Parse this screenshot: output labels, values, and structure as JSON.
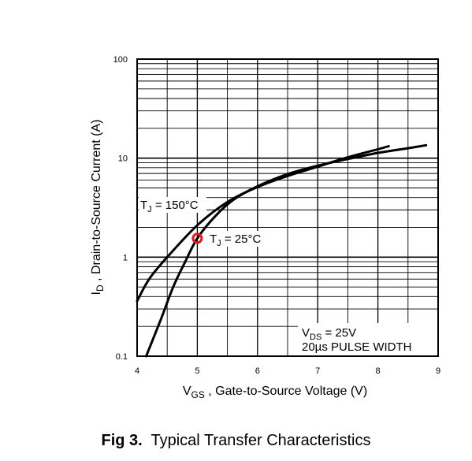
{
  "chart_data": {
    "type": "line",
    "x_axis": {
      "label_main": "V",
      "label_sub": "GS",
      "label_rest": " , Gate-to-Source Voltage (V)",
      "range": [
        4,
        9
      ],
      "ticks": [
        "4",
        "5",
        "6",
        "7",
        "8",
        "9"
      ]
    },
    "y_axis": {
      "scale": "log",
      "label_main": "I",
      "label_sub": "D",
      "label_rest": " , Drain-to-Source Current (A)",
      "range": [
        0.1,
        100
      ],
      "ticks": [
        "0.1",
        "1",
        "10",
        "100"
      ]
    },
    "grid": true,
    "series": [
      {
        "name": "TJ = 150°C",
        "label_main": "T",
        "label_sub": "J",
        "label_rest": " = 150°C",
        "points": [
          [
            4.0,
            0.36
          ],
          [
            4.2,
            0.6
          ],
          [
            4.5,
            1.0
          ],
          [
            5.0,
            2.1
          ],
          [
            5.5,
            3.6
          ],
          [
            6.0,
            5.1
          ],
          [
            6.5,
            6.6
          ],
          [
            7.0,
            8.2
          ],
          [
            7.5,
            10.2
          ],
          [
            8.0,
            12.3
          ],
          [
            8.18,
            13.2
          ]
        ]
      },
      {
        "name": "TJ = 25°C",
        "label_main": "T",
        "label_sub": "J",
        "label_rest": " = 25°C",
        "points": [
          [
            4.15,
            0.1
          ],
          [
            4.4,
            0.24
          ],
          [
            4.6,
            0.5
          ],
          [
            4.8,
            0.9
          ],
          [
            5.0,
            1.55
          ],
          [
            5.3,
            2.6
          ],
          [
            5.6,
            3.8
          ],
          [
            6.0,
            5.2
          ],
          [
            6.5,
            6.9
          ],
          [
            7.0,
            8.4
          ],
          [
            7.5,
            9.8
          ],
          [
            8.0,
            11.3
          ],
          [
            8.5,
            12.6
          ],
          [
            8.8,
            13.5
          ]
        ]
      }
    ],
    "marker": {
      "x": 5.0,
      "y": 1.55,
      "color": "#e8161c"
    },
    "conditions": {
      "vds_main": "V",
      "vds_sub": "DS",
      "vds_rest": " = 25V",
      "pulse": "20µs PULSE WIDTH"
    },
    "caption": {
      "fig": "Fig 3.",
      "title": "Typical Transfer Characteristics"
    }
  }
}
